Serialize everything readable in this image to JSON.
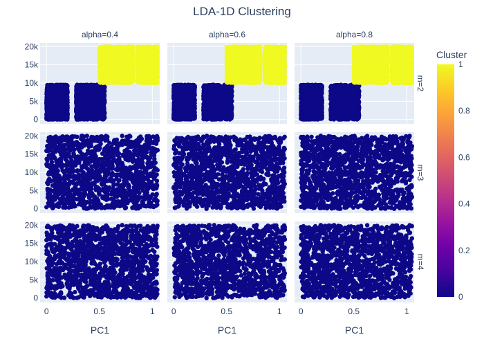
{
  "chart_data": {
    "type": "scatter",
    "title": "LDA-1D Clustering",
    "xlabel": "PC1",
    "ylabel": "",
    "xlim": [
      -0.06,
      1.07
    ],
    "ylim": [
      -1200,
      21000
    ],
    "x_ticks": [
      0,
      0.5,
      1
    ],
    "x_tick_labels": [
      "0",
      "0.5",
      "1"
    ],
    "y_ticks": [
      0,
      5000,
      10000,
      15000,
      20000
    ],
    "y_tick_labels": [
      "0",
      "5k",
      "10k",
      "15k",
      "20k"
    ],
    "grid": true,
    "facet_columns": [
      "alpha=0.4",
      "alpha=0.6",
      "alpha=0.8"
    ],
    "facet_rows": [
      "m=2",
      "m=3",
      "m=4"
    ],
    "colorbar": {
      "title": "Cluster",
      "range": [
        0,
        1
      ],
      "ticks": [
        0,
        0.2,
        0.4,
        0.6,
        0.8,
        1
      ],
      "tick_labels": [
        "0",
        "0.2",
        "0.4",
        "0.6",
        "0.8",
        "1"
      ],
      "colors": [
        "#0d0887",
        "#46039f",
        "#7201a8",
        "#9c179e",
        "#bd3786",
        "#d8576b",
        "#ed7953",
        "#fb9f3a",
        "#fdca26",
        "#f0f921"
      ]
    },
    "point_clusters": [
      {
        "row": "m=2",
        "cluster": 0,
        "color": "#0d0887",
        "x_range": [
          0.0,
          0.2
        ],
        "y_range": [
          0,
          9500
        ]
      },
      {
        "row": "m=2",
        "cluster": 0,
        "color": "#0d0887",
        "x_range": [
          0.28,
          0.55
        ],
        "y_range": [
          0,
          9500
        ]
      },
      {
        "row": "m=2",
        "cluster": 1,
        "color": "#f0f921",
        "x_range": [
          0.5,
          0.82
        ],
        "y_range": [
          10000,
          20000
        ]
      },
      {
        "row": "m=2",
        "cluster": 1,
        "color": "#f0f921",
        "x_range": [
          0.86,
          1.05
        ],
        "y_range": [
          10000,
          20000
        ]
      },
      {
        "row": "m=3",
        "cluster": 0,
        "color": "#0d0887",
        "x_range": [
          0.0,
          1.05
        ],
        "y_range": [
          0,
          20000
        ]
      },
      {
        "row": "m=4",
        "cluster": 0,
        "color": "#0d0887",
        "x_range": [
          0.0,
          1.05
        ],
        "y_range": [
          0,
          20000
        ]
      }
    ]
  }
}
